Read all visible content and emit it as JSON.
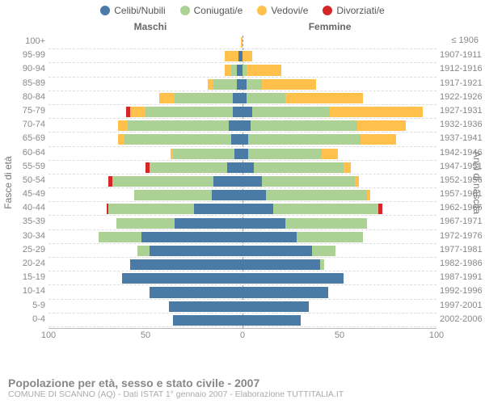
{
  "type": "population-pyramid",
  "legend": [
    {
      "label": "Celibi/Nubili",
      "color": "#4a7ba6"
    },
    {
      "label": "Coniugati/e",
      "color": "#abd194"
    },
    {
      "label": "Vedovi/e",
      "color": "#ffc04c"
    },
    {
      "label": "Divorziati/e",
      "color": "#d62728"
    }
  ],
  "header_male": "Maschi",
  "header_female": "Femmine",
  "axis_left_title": "Fasce di età",
  "axis_right_title": "Anni di nascita",
  "xmax": 100,
  "xticks": [
    100,
    50,
    0,
    50,
    100
  ],
  "footer_title": "Popolazione per età, sesso e stato civile - 2007",
  "footer_sub": "COMUNE DI SCANNO (AQ) - Dati ISTAT 1° gennaio 2007 - Elaborazione TUTTITALIA.IT",
  "background_color": "#ffffff",
  "grid_color": "#dddddd",
  "rows": [
    {
      "age": "100+",
      "birth": "≤ 1906",
      "m": [
        0,
        0,
        1,
        0
      ],
      "f": [
        0,
        0,
        0,
        0
      ]
    },
    {
      "age": "95-99",
      "birth": "1907-1911",
      "m": [
        2,
        0,
        7,
        0
      ],
      "f": [
        0,
        0,
        5,
        0
      ]
    },
    {
      "age": "90-94",
      "birth": "1912-1916",
      "m": [
        3,
        3,
        3,
        0
      ],
      "f": [
        0,
        2,
        18,
        0
      ]
    },
    {
      "age": "85-89",
      "birth": "1917-1921",
      "m": [
        3,
        12,
        3,
        0
      ],
      "f": [
        2,
        8,
        28,
        0
      ]
    },
    {
      "age": "80-84",
      "birth": "1922-1926",
      "m": [
        5,
        30,
        8,
        0
      ],
      "f": [
        2,
        20,
        40,
        0
      ]
    },
    {
      "age": "75-79",
      "birth": "1927-1931",
      "m": [
        5,
        45,
        8,
        2
      ],
      "f": [
        5,
        40,
        48,
        0
      ]
    },
    {
      "age": "70-74",
      "birth": "1932-1936",
      "m": [
        7,
        52,
        5,
        0
      ],
      "f": [
        4,
        55,
        25,
        0
      ]
    },
    {
      "age": "65-69",
      "birth": "1937-1941",
      "m": [
        6,
        55,
        3,
        0
      ],
      "f": [
        3,
        58,
        18,
        0
      ]
    },
    {
      "age": "60-64",
      "birth": "1942-1946",
      "m": [
        4,
        32,
        1,
        0
      ],
      "f": [
        3,
        38,
        8,
        0
      ]
    },
    {
      "age": "55-59",
      "birth": "1947-1951",
      "m": [
        8,
        40,
        0,
        2
      ],
      "f": [
        6,
        46,
        4,
        0
      ]
    },
    {
      "age": "50-54",
      "birth": "1952-1956",
      "m": [
        15,
        52,
        0,
        2
      ],
      "f": [
        10,
        48,
        2,
        0
      ]
    },
    {
      "age": "45-49",
      "birth": "1957-1961",
      "m": [
        16,
        40,
        0,
        0
      ],
      "f": [
        12,
        52,
        2,
        0
      ]
    },
    {
      "age": "40-44",
      "birth": "1962-1966",
      "m": [
        25,
        44,
        0,
        1
      ],
      "f": [
        16,
        54,
        0,
        2
      ]
    },
    {
      "age": "35-39",
      "birth": "1967-1971",
      "m": [
        35,
        30,
        0,
        0
      ],
      "f": [
        22,
        42,
        0,
        0
      ]
    },
    {
      "age": "30-34",
      "birth": "1972-1976",
      "m": [
        52,
        22,
        0,
        0
      ],
      "f": [
        28,
        34,
        0,
        0
      ]
    },
    {
      "age": "25-29",
      "birth": "1977-1981",
      "m": [
        48,
        6,
        0,
        0
      ],
      "f": [
        36,
        12,
        0,
        0
      ]
    },
    {
      "age": "20-24",
      "birth": "1982-1986",
      "m": [
        58,
        0,
        0,
        0
      ],
      "f": [
        40,
        2,
        0,
        0
      ]
    },
    {
      "age": "15-19",
      "birth": "1987-1991",
      "m": [
        62,
        0,
        0,
        0
      ],
      "f": [
        52,
        0,
        0,
        0
      ]
    },
    {
      "age": "10-14",
      "birth": "1992-1996",
      "m": [
        48,
        0,
        0,
        0
      ],
      "f": [
        44,
        0,
        0,
        0
      ]
    },
    {
      "age": "5-9",
      "birth": "1997-2001",
      "m": [
        38,
        0,
        0,
        0
      ],
      "f": [
        34,
        0,
        0,
        0
      ]
    },
    {
      "age": "0-4",
      "birth": "2002-2006",
      "m": [
        36,
        0,
        0,
        0
      ],
      "f": [
        30,
        0,
        0,
        0
      ]
    }
  ]
}
